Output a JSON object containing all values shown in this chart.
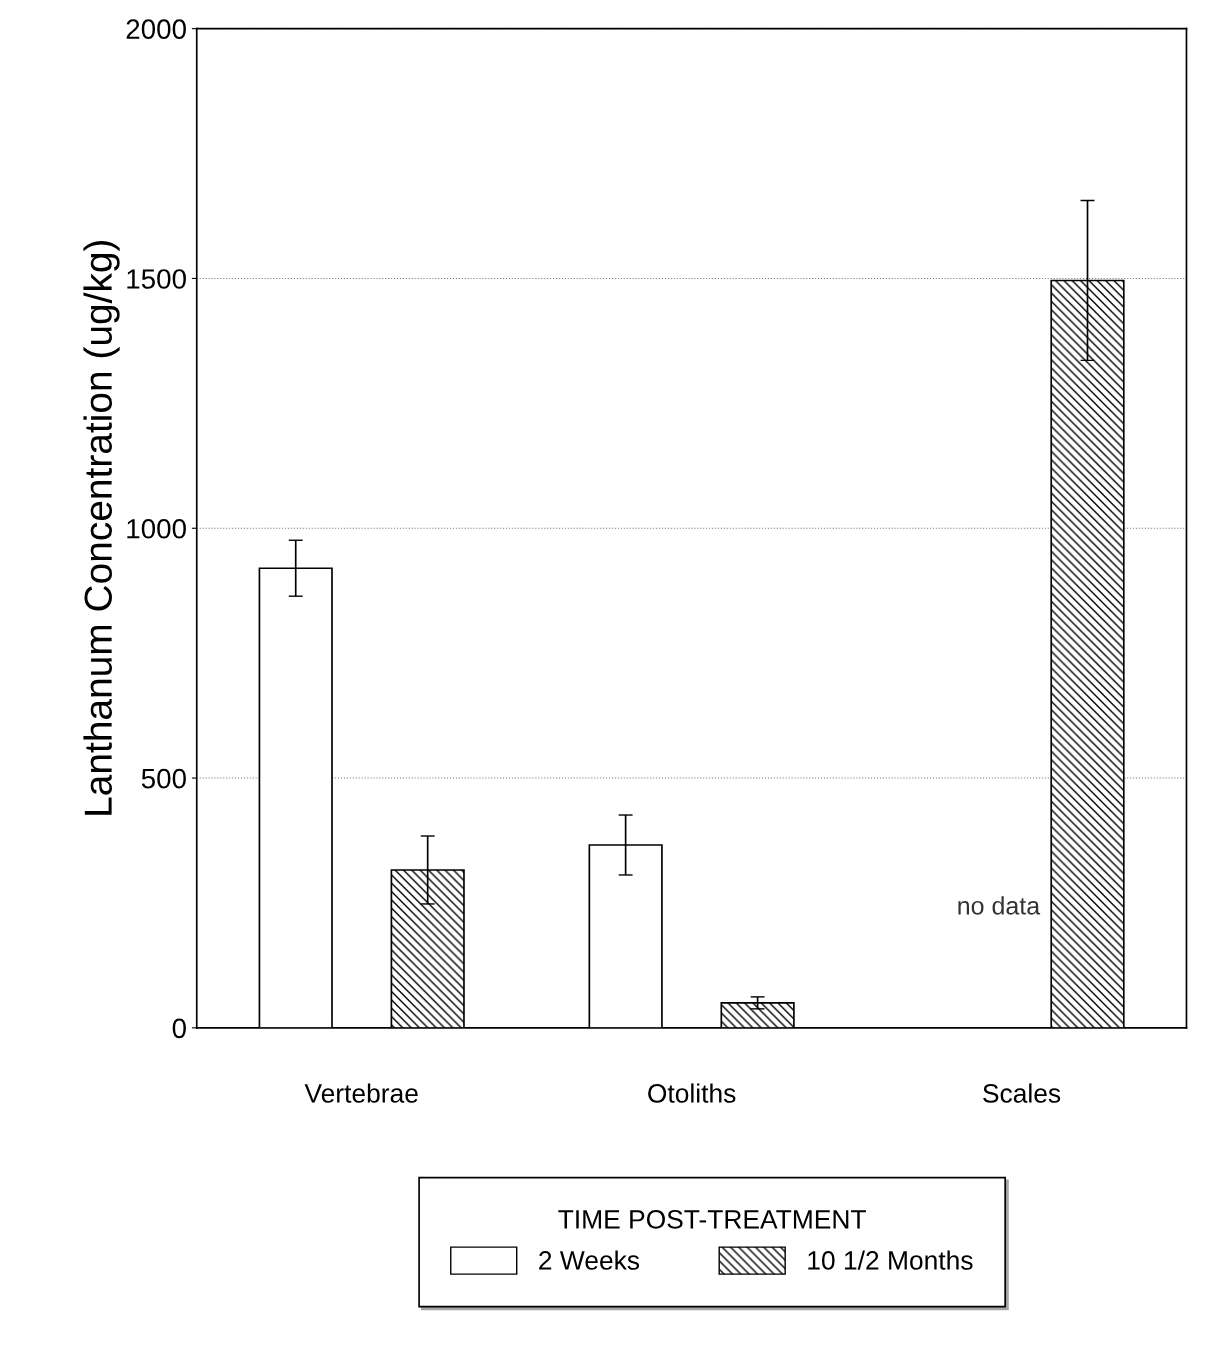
{
  "chart_data": {
    "type": "bar",
    "ylabel": "Lanthanum Concentration (ug/kg)",
    "categories": [
      "Vertebrae",
      "Otoliths",
      "Scales"
    ],
    "series": [
      {
        "name": "2 Weeks",
        "color": "#ffffff",
        "values": [
          920,
          366,
          null
        ],
        "errors": [
          56,
          60,
          null
        ]
      },
      {
        "name": "10 1/2 Months",
        "color": "#000000",
        "values": [
          316,
          50,
          1496
        ],
        "errors": [
          68,
          12,
          160
        ]
      }
    ],
    "legend_title": "TIME POST-TREATMENT",
    "legend": "bottom",
    "ylim": [
      0,
      2000
    ],
    "yticks": [
      0,
      500,
      1000,
      1500,
      2000
    ],
    "grid": "y",
    "annotations": [
      "no data"
    ]
  }
}
